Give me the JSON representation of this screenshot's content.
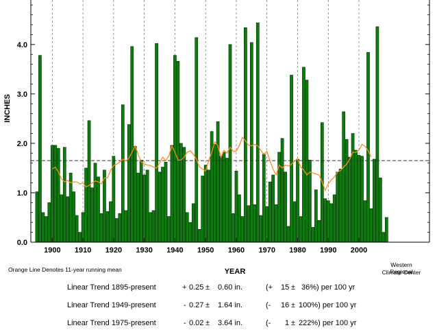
{
  "chart_data": {
    "type": "bar",
    "xlabel": "YEAR",
    "ylabel": "INCHES",
    "xlim": [
      1893,
      2023
    ],
    "ylim": [
      0,
      4.9
    ],
    "x_ticks": [
      1900,
      1910,
      1920,
      1930,
      1940,
      1950,
      1960,
      1970,
      1980,
      1990,
      2000
    ],
    "y_ticks": [
      "0.0",
      "1.0",
      "2.0",
      "3.0",
      "4.0"
    ],
    "grid": "vertical dashed lines at decades",
    "mean_line": 1.65,
    "years": [
      1895,
      1896,
      1897,
      1898,
      1899,
      1900,
      1901,
      1902,
      1903,
      1904,
      1905,
      1906,
      1907,
      1908,
      1909,
      1910,
      1911,
      1912,
      1913,
      1914,
      1915,
      1916,
      1917,
      1918,
      1919,
      1920,
      1921,
      1922,
      1923,
      1924,
      1925,
      1926,
      1927,
      1928,
      1929,
      1930,
      1931,
      1932,
      1933,
      1934,
      1935,
      1936,
      1937,
      1938,
      1939,
      1940,
      1941,
      1942,
      1943,
      1944,
      1945,
      1946,
      1947,
      1948,
      1949,
      1950,
      1951,
      1952,
      1953,
      1954,
      1955,
      1956,
      1957,
      1958,
      1959,
      1960,
      1961,
      1962,
      1963,
      1964,
      1965,
      1966,
      1967,
      1968,
      1969,
      1970,
      1971,
      1972,
      1973,
      1974,
      1975,
      1976,
      1977,
      1978,
      1979,
      1980,
      1981,
      1982,
      1983,
      1984,
      1985,
      1986,
      1987,
      1988,
      1989,
      1990,
      1991,
      1992,
      1993,
      1994,
      1995,
      1996,
      1997,
      1998,
      1999,
      2000,
      2001,
      2002,
      2003,
      2004,
      2005,
      2006,
      2007,
      2008,
      2009
    ],
    "values": [
      1.02,
      3.78,
      0.6,
      0.52,
      0.8,
      1.96,
      1.96,
      1.9,
      0.96,
      1.92,
      0.92,
      1.4,
      1.02,
      0.54,
      0.2,
      0.6,
      1.5,
      2.46,
      1.1,
      1.6,
      1.32,
      0.58,
      1.46,
      0.62,
      0.82,
      1.74,
      0.48,
      0.58,
      2.78,
      0.64,
      2.38,
      3.96,
      1.94,
      1.4,
      1.66,
      1.36,
      1.46,
      0.6,
      0.64,
      4.02,
      1.42,
      1.52,
      1.62,
      0.52,
      1.96,
      3.78,
      3.66,
      2.0,
      1.92,
      0.6,
      0.4,
      0.78,
      4.14,
      0.26,
      1.34,
      1.56,
      1.46,
      2.24,
      1.98,
      2.44,
      1.74,
      1.82,
      1.7,
      4.0,
      0.58,
      1.44,
      0.96,
      0.52,
      4.34,
      0.74,
      4.04,
      0.76,
      4.44,
      0.54,
      1.78,
      0.72,
      1.22,
      1.36,
      0.76,
      1.82,
      2.1,
      1.42,
      0.32,
      3.38,
      0.82,
      1.68,
      0.52,
      3.54,
      3.28,
      1.66,
      0.3,
      1.06,
      0.44,
      2.42,
      0.88,
      0.84,
      0.78,
      0.96,
      1.42,
      1.48,
      2.64,
      2.08,
      1.72,
      2.2,
      1.86,
      1.76,
      1.74,
      0.84,
      3.84,
      0.68,
      1.68,
      4.36,
      1.3,
      0.2,
      0.5
    ],
    "running_mean_label": "Orange Line Denotes 11-year running mean",
    "running_mean": {
      "years": [
        1900,
        1901,
        1902,
        1903,
        1904,
        1905,
        1906,
        1907,
        1908,
        1909,
        1910,
        1911,
        1912,
        1913,
        1914,
        1915,
        1916,
        1917,
        1918,
        1919,
        1920,
        1921,
        1922,
        1923,
        1924,
        1925,
        1926,
        1927,
        1928,
        1929,
        1930,
        1931,
        1932,
        1933,
        1934,
        1935,
        1936,
        1937,
        1938,
        1939,
        1940,
        1941,
        1942,
        1943,
        1944,
        1945,
        1946,
        1947,
        1948,
        1949,
        1950,
        1951,
        1952,
        1953,
        1954,
        1955,
        1956,
        1957,
        1958,
        1959,
        1960,
        1961,
        1962,
        1963,
        1964,
        1965,
        1966,
        1967,
        1968,
        1969,
        1970,
        1971,
        1972,
        1973,
        1974,
        1975,
        1976,
        1977,
        1978,
        1979,
        1980,
        1981,
        1982,
        1983,
        1984,
        1985,
        1986,
        1987,
        1988,
        1989,
        1990,
        1991,
        1992,
        1993,
        1994,
        1995,
        1996,
        1997,
        1998,
        1999,
        2000,
        2001,
        2002,
        2003,
        2004
      ],
      "values": [
        1.48,
        1.52,
        1.42,
        1.28,
        1.22,
        1.25,
        1.2,
        1.22,
        1.22,
        1.18,
        1.2,
        1.12,
        1.15,
        1.2,
        1.24,
        1.22,
        1.18,
        1.3,
        1.3,
        1.45,
        1.55,
        1.58,
        1.62,
        1.68,
        1.64,
        1.7,
        1.82,
        1.95,
        1.78,
        1.62,
        1.58,
        1.56,
        1.55,
        1.52,
        1.5,
        1.6,
        1.72,
        1.65,
        1.74,
        1.95,
        1.82,
        1.66,
        1.66,
        1.72,
        1.82,
        1.85,
        1.78,
        1.68,
        1.52,
        1.48,
        1.44,
        1.65,
        1.82,
        2.03,
        1.95,
        1.72,
        1.86,
        1.8,
        1.92,
        1.84,
        1.84,
        1.96,
        2.12,
        2.05,
        1.96,
        1.95,
        1.98,
        1.95,
        1.86,
        1.78,
        1.84,
        1.64,
        1.48,
        1.36,
        1.56,
        1.5,
        1.56,
        1.54,
        1.58,
        1.64,
        1.68,
        1.52,
        1.46,
        1.36,
        1.42,
        1.4,
        1.38,
        1.36,
        1.22,
        1.05,
        1.18,
        1.26,
        1.32,
        1.42,
        1.45,
        1.52,
        1.58,
        1.68,
        1.82,
        1.82,
        1.86,
        1.98,
        1.94,
        1.85,
        1.72
      ]
    }
  },
  "credit": {
    "line1": "Western Regional",
    "line2": "Climate Center"
  },
  "trends": [
    {
      "label": "Linear Trend 1895-present",
      "sign": "+",
      "value": "0.25",
      "pm": "±",
      "error": "0.60 in.",
      "pct_sign": "(+",
      "pct": "15",
      "pct_err": "36%) per 100 yr"
    },
    {
      "label": "Linear Trend 1949-present",
      "sign": "-",
      "value": "0.27",
      "pm": "±",
      "error": "1.64 in.",
      "pct_sign": "(-",
      "pct": "16",
      "pct_err": "100%) per 100 yr"
    },
    {
      "label": "Linear Trend 1975-present",
      "sign": "-",
      "value": "0.02",
      "pm": "±",
      "error": "3.64 in.",
      "pct_sign": "(-",
      "pct": "1",
      "pct_err": "222%) per 100 yr"
    }
  ]
}
